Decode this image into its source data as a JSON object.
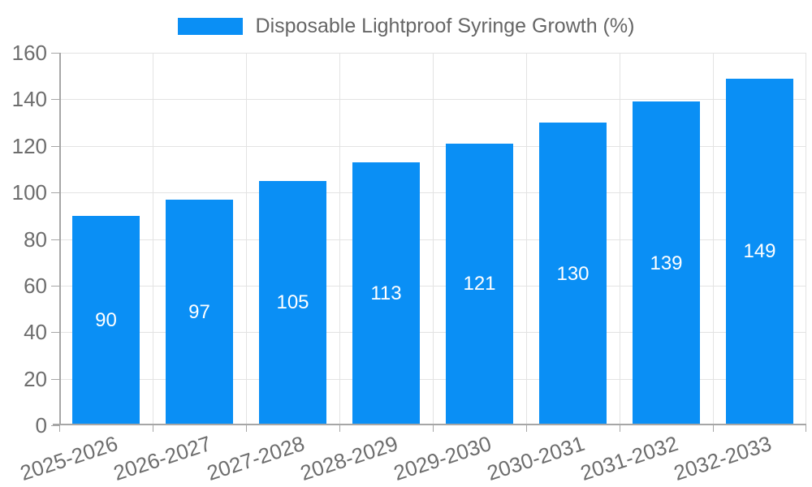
{
  "chart_data": {
    "type": "bar",
    "title": "Disposable Lightproof Syringe Growth (%)",
    "categories": [
      "2025-2026",
      "2026-2027",
      "2027-2028",
      "2028-2029",
      "2029-2030",
      "2030-2031",
      "2031-2032",
      "2032-2033"
    ],
    "series": [
      {
        "name": "Disposable Lightproof Syringe Growth (%)",
        "values": [
          90,
          97,
          105,
          113,
          121,
          130,
          139,
          149
        ]
      }
    ],
    "value_labels_shown": true,
    "xlabel": "",
    "ylabel": "",
    "ylim": [
      0,
      160
    ],
    "yticks": [
      0,
      20,
      40,
      60,
      80,
      100,
      120,
      140,
      160
    ],
    "grid": true,
    "legend_position": "top",
    "colors": {
      "bar": "#0a8ff5",
      "grid": "#e3e3e3",
      "axis": "#a6a6a6",
      "tick_text": "#6d6d6d",
      "legend_text": "#666666",
      "value_label_text": "#ffffff"
    }
  }
}
